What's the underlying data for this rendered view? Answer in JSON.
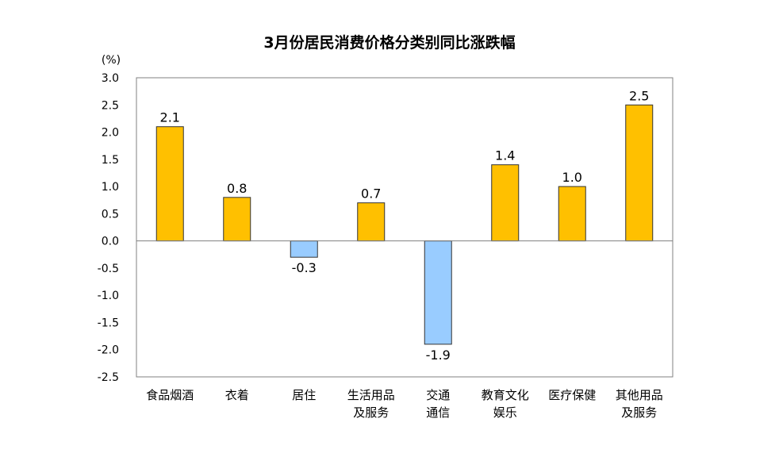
{
  "chart_data": {
    "type": "bar",
    "title": "3月份居民消费价格分类别同比涨跌幅",
    "ylabel": "(%)",
    "xlabel": "",
    "ylim": [
      -2.5,
      3.0
    ],
    "yticks": [
      "3.0",
      "2.5",
      "2.0",
      "1.5",
      "1.0",
      "0.5",
      "0.0",
      "-0.5",
      "-1.0",
      "-1.5",
      "-2.0",
      "-2.5"
    ],
    "categories": [
      [
        "食品烟酒"
      ],
      [
        "衣着"
      ],
      [
        "居住"
      ],
      [
        "生活用品",
        "及服务"
      ],
      [
        "交通",
        "通信"
      ],
      [
        "教育文化",
        "娱乐"
      ],
      [
        "医疗保健"
      ],
      [
        "其他用品",
        "及服务"
      ]
    ],
    "values": [
      2.1,
      0.8,
      -0.3,
      0.7,
      -1.9,
      1.4,
      1.0,
      2.5
    ],
    "value_labels": [
      "2.1",
      "0.8",
      "-0.3",
      "0.7",
      "-1.9",
      "1.4",
      "1.0",
      "2.5"
    ],
    "colors": {
      "positive": "#FFC000",
      "negative": "#99CCFF",
      "bar_border": "#333333",
      "axis": "#808080"
    },
    "grid": false,
    "legend": "none"
  }
}
